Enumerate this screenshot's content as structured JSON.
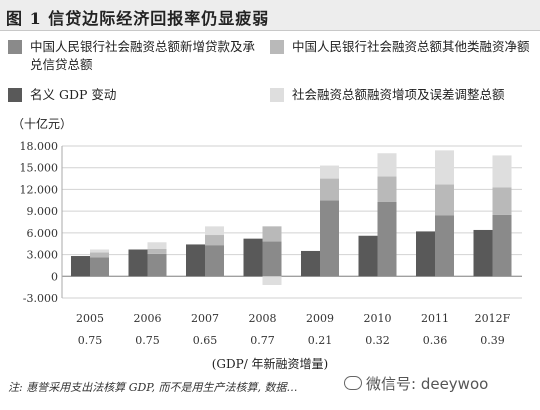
{
  "figure": {
    "title": "图 1   信贷边际经济回报率仍显疲弱",
    "unit": "（十亿元）",
    "xlabel": "(GDP/ 年新融资增量)",
    "note": "注: 惠誉采用支出法核算 GDP, 而不是用生产法核算, 数据…",
    "watermark": "微信号: deeywoo"
  },
  "colors": {
    "series_loans": "#8a8a8a",
    "series_other": "#b9b9b9",
    "series_gdp": "#595959",
    "series_adjust": "#dedede"
  },
  "chart_data": {
    "type": "bar",
    "categories": [
      "2005",
      "2006",
      "2007",
      "2008",
      "2009",
      "2010",
      "2011",
      "2012F"
    ],
    "category_sublabels": [
      "0.75",
      "0.75",
      "0.65",
      "0.77",
      "0.21",
      "0.32",
      "0.36",
      "0.39"
    ],
    "series": [
      {
        "name": "名义 GDP 变动",
        "values": [
          2800,
          3700,
          4400,
          5200,
          3500,
          5600,
          6200,
          6400
        ]
      },
      {
        "name": "中国人民银行社会融资总额新增贷款及承兑信贷总额",
        "values": [
          2600,
          3100,
          4300,
          4800,
          10500,
          10300,
          8400,
          8500
        ]
      },
      {
        "name": "中国人民银行社会融资总额其他类融资净额",
        "values": [
          700,
          700,
          1400,
          2100,
          3000,
          3500,
          4300,
          3800
        ]
      },
      {
        "name": "社会融资总额融资增项及误差调整总额",
        "values": [
          400,
          900,
          1200,
          -1200,
          1800,
          3200,
          4700,
          4400
        ]
      }
    ],
    "ylim": [
      -3000,
      18000
    ],
    "yticks": [
      "-3.000",
      "0",
      "3.000",
      "6.000",
      "9.000",
      "12.000",
      "15.000",
      "18.000"
    ],
    "ytick_values": [
      -3000,
      0,
      3000,
      6000,
      9000,
      12000,
      15000,
      18000
    ],
    "grid": true,
    "legend_position": "top"
  }
}
